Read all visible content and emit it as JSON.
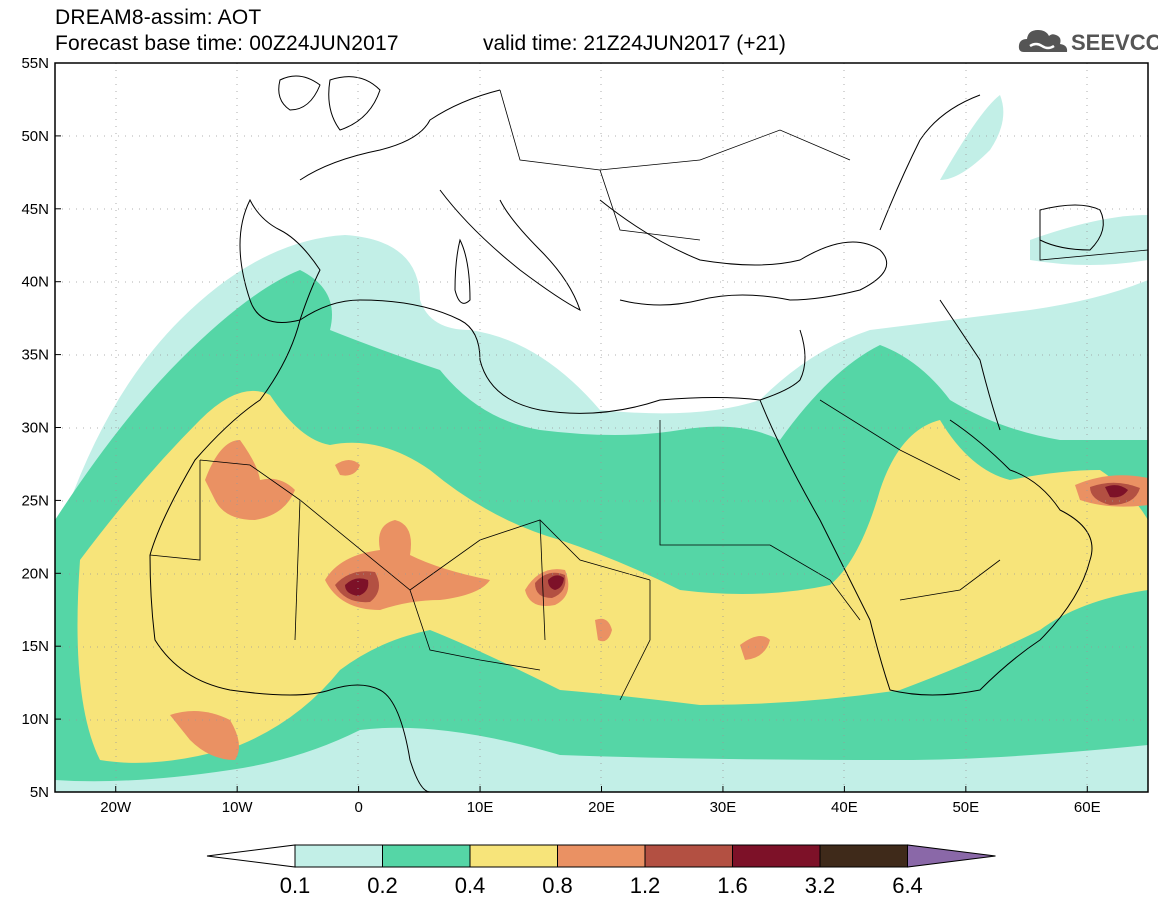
{
  "header": {
    "title_line1": "DREAM8-assim: AOT",
    "title_line2": "Forecast base time: 00Z24JUN2017",
    "valid_time": "valid time: 21Z24JUN2017 (+21)",
    "logo_text": "SEEVCCC"
  },
  "axes": {
    "lat_labels": [
      "55N",
      "50N",
      "45N",
      "40N",
      "35N",
      "30N",
      "25N",
      "20N",
      "15N",
      "10N",
      "5N"
    ],
    "lat_values": [
      55,
      50,
      45,
      40,
      35,
      30,
      25,
      20,
      15,
      10,
      5
    ],
    "lon_labels": [
      "20W",
      "10W",
      "0",
      "10E",
      "20E",
      "30E",
      "40E",
      "50E",
      "60E"
    ],
    "lon_values": [
      -20,
      -10,
      0,
      10,
      20,
      30,
      40,
      50,
      60
    ],
    "lon_range": [
      -25,
      65
    ],
    "lat_range": [
      5,
      55
    ],
    "grid": "dotted"
  },
  "colorbar": {
    "labels": [
      "0.1",
      "0.2",
      "0.4",
      "0.8",
      "1.2",
      "1.6",
      "3.2",
      "6.4"
    ],
    "colors": [
      "#c2efe7",
      "#55d6a6",
      "#f7e47a",
      "#ea9163",
      "#b35042",
      "#7d1128",
      "#3f2a1a"
    ],
    "under_color": "#ffffff",
    "over_color": "#8a68a8"
  },
  "palette": {
    "aot_0_1": "#c2efe7",
    "aot_0_2": "#55d6a6",
    "aot_0_4": "#f7e47a",
    "aot_0_8": "#ea9163",
    "aot_1_2": "#b35042",
    "aot_1_6": "#7d1128"
  }
}
